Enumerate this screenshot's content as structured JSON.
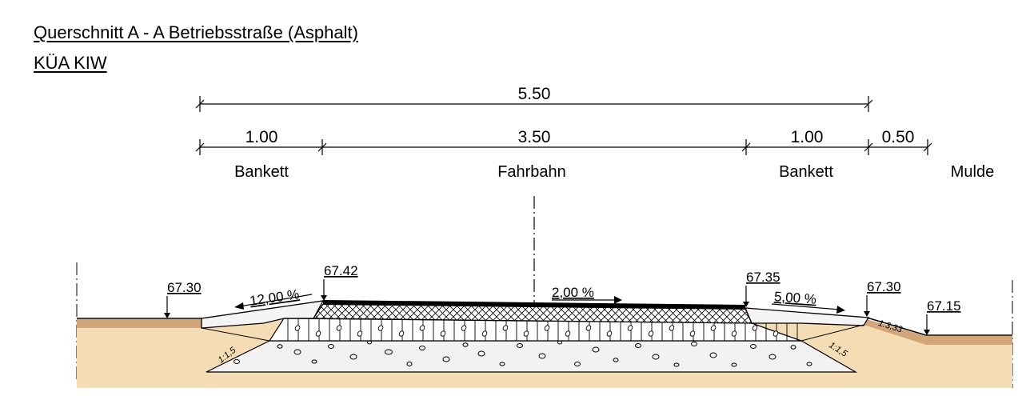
{
  "title": "Querschnitt A - A Betriebsstraße (Asphalt)",
  "subtitle": "KÜA KIW",
  "dimensions": {
    "total": "5.50",
    "bankett_left": "1.00",
    "fahrbahn": "3.50",
    "bankett_right": "1.00",
    "mulde": "0.50"
  },
  "zones": {
    "bankett_left": "Bankett",
    "fahrbahn": "Fahrbahn",
    "bankett_right": "Bankett",
    "mulde": "Mulde"
  },
  "elevations": {
    "left_ground": "67.30",
    "left_bankett_edge": "67.42",
    "right_bankett_edge": "67.35",
    "right_bankett_outer": "67.30",
    "mulde_bottom": "67.15"
  },
  "slopes": {
    "bankett_left": "12,00 %",
    "fahrbahn": "2,00 %",
    "bankett_right": "5,00 %"
  },
  "embankment": {
    "left": "1:1,5",
    "right": "1:1,5",
    "mulde": "1:3,33"
  },
  "colors": {
    "topsoil": "#d2a679",
    "subsoil": "#f4dcb4",
    "gravel": "#f2f2f2",
    "bankett": "#f5f5f5",
    "asphalt": "#000000"
  }
}
